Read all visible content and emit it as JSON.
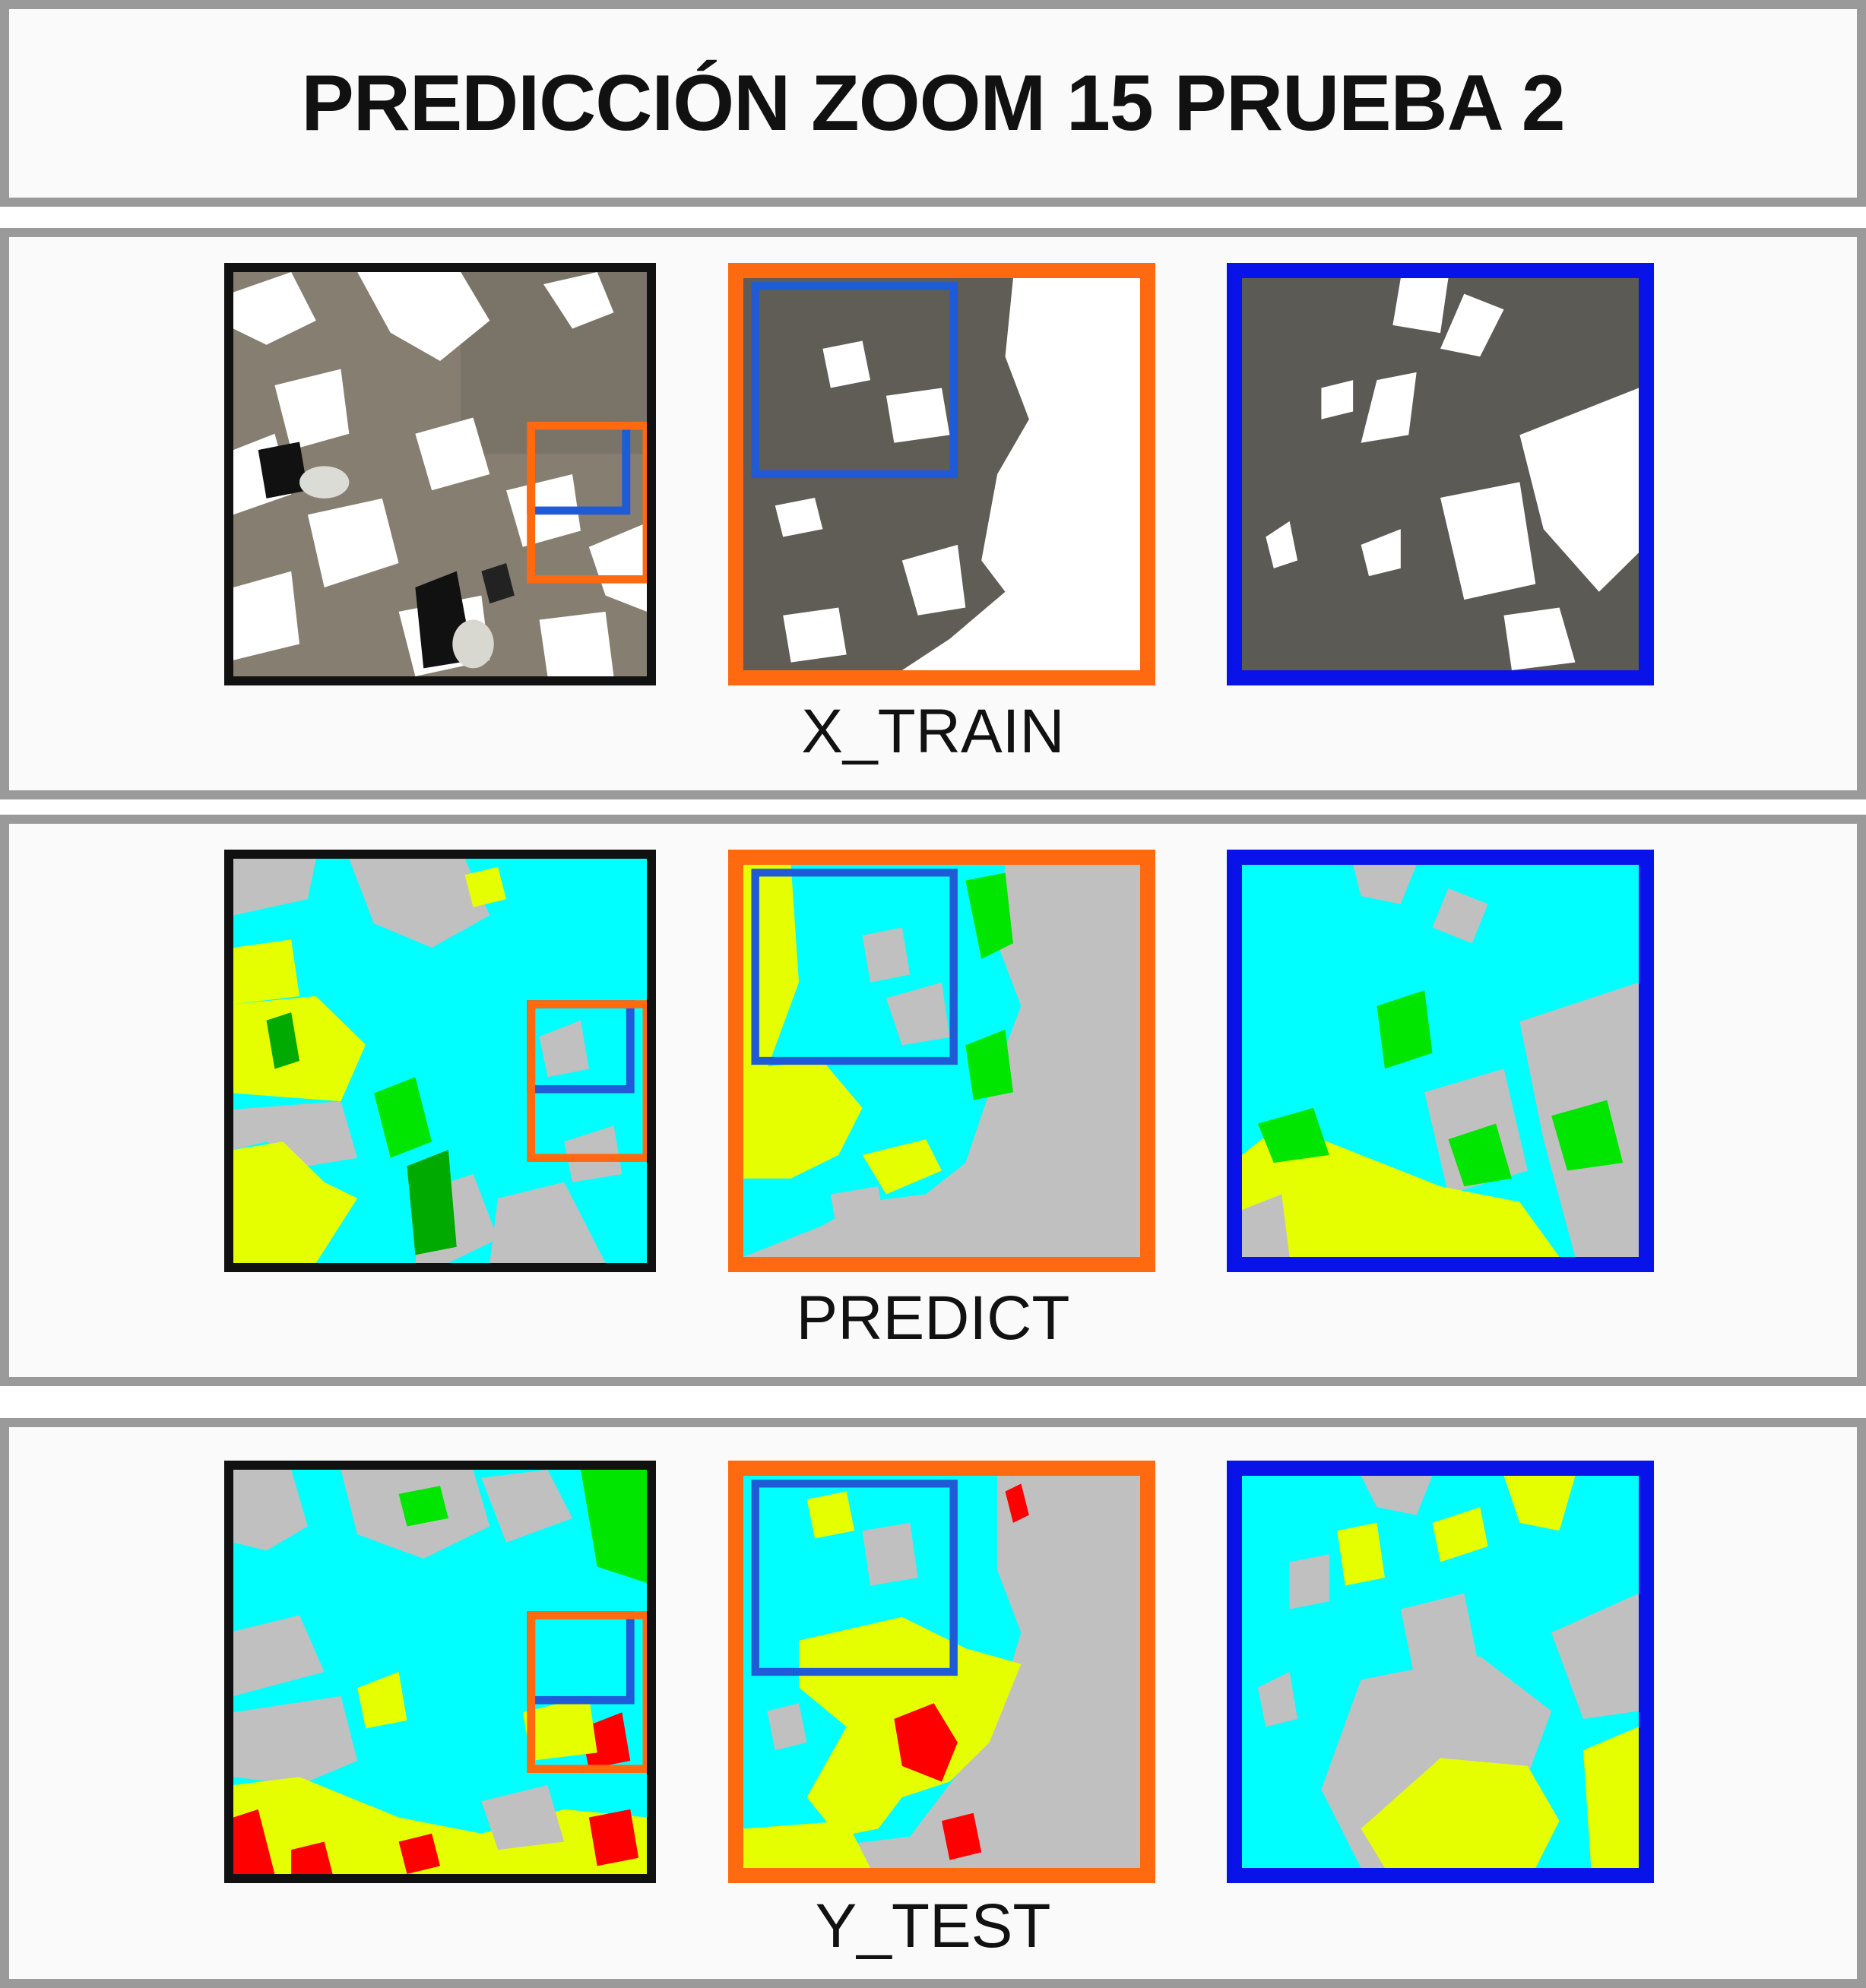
{
  "title": "PREDICCIÓN ZOOM 15 PRUEBA 2",
  "rows": [
    {
      "label": "X_TRAIN"
    },
    {
      "label": "PREDICT"
    },
    {
      "label": "Y_TEST"
    }
  ],
  "colors": {
    "frame_border": "#9a9a9a",
    "overview_border": "#111111",
    "orange_zoom": "#ff6a10",
    "blue_zoom": "#0a12ea",
    "inner_blue_marker": "#1f5bd6",
    "class_cyan": "#00ffff",
    "class_yellow": "#e6ff00",
    "class_green": "#00e600",
    "class_red": "#ff0000",
    "class_gray": "#c0c0c0",
    "satellite": "#7d7668"
  }
}
